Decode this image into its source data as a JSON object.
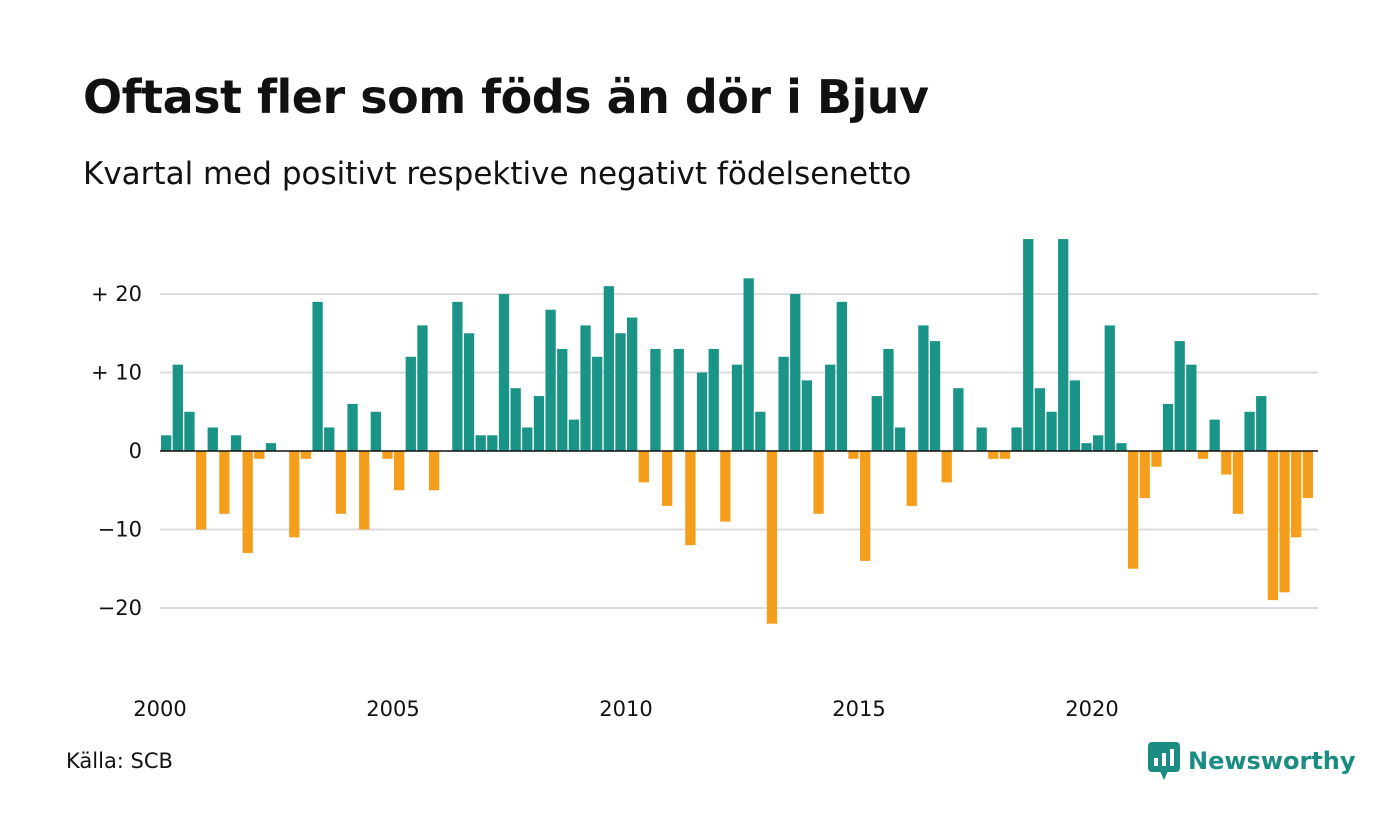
{
  "title": "Oftast fler som föds än dör i Bjuv",
  "subtitle": "Kvartal med positivt respektive negativt födelsenetto",
  "source": "Källa: SCB",
  "brand": {
    "name": "Newsworthy",
    "icon": "newsworthy-logo-icon",
    "color": "#1a8c82"
  },
  "chart_data": {
    "type": "bar",
    "x_ticks": [
      2000,
      2005,
      2010,
      2015,
      2020
    ],
    "y_ticks": [
      {
        "value": 20,
        "label": "+ 20"
      },
      {
        "value": 10,
        "label": "+ 10"
      },
      {
        "value": 0,
        "label": "0"
      },
      {
        "value": -10,
        "label": "−10"
      },
      {
        "value": -20,
        "label": "−20"
      }
    ],
    "ylim": [
      -25,
      28
    ],
    "grid": true,
    "colors": {
      "positive": "#1a9487",
      "negative": "#f59e1c"
    },
    "x_start": "2000 Q1",
    "values": [
      2,
      11,
      5,
      -10,
      3,
      -8,
      2,
      -13,
      -1,
      1,
      0,
      -11,
      -1,
      19,
      3,
      -8,
      6,
      -10,
      5,
      -1,
      -5,
      12,
      16,
      -5,
      0,
      19,
      15,
      2,
      2,
      20,
      8,
      3,
      7,
      18,
      13,
      4,
      16,
      12,
      21,
      15,
      17,
      -4,
      13,
      -7,
      13,
      -12,
      10,
      13,
      -9,
      11,
      22,
      5,
      -22,
      12,
      20,
      9,
      -8,
      11,
      19,
      -1,
      -14,
      7,
      13,
      3,
      -7,
      16,
      14,
      -4,
      8,
      0,
      3,
      -1,
      -1,
      3,
      27,
      8,
      5,
      27,
      9,
      1,
      2,
      16,
      1,
      -15,
      -6,
      -2,
      6,
      14,
      11,
      -1,
      4,
      -3,
      -8,
      5,
      7,
      -19,
      -18,
      -11,
      -6
    ]
  }
}
